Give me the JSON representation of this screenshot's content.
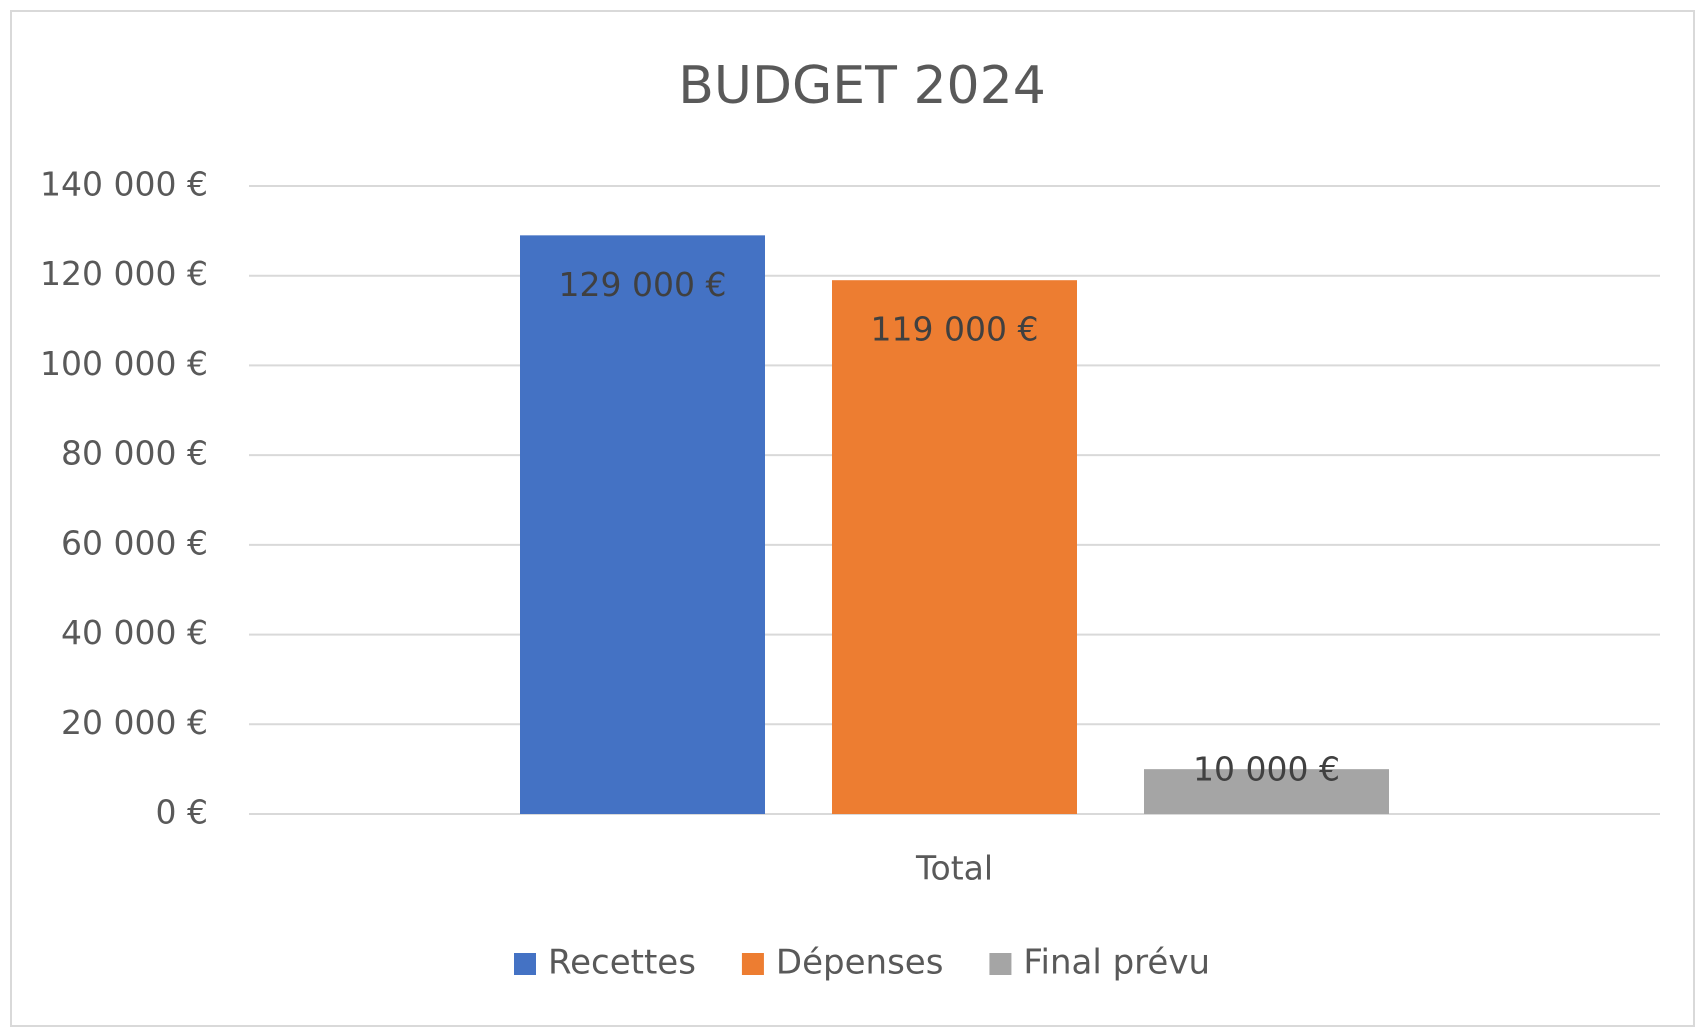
{
  "chart_data": {
    "type": "bar",
    "title": "BUDGET 2024",
    "categories": [
      "Total"
    ],
    "series": [
      {
        "name": "Recettes",
        "color": "#4472c4",
        "values": [
          129000
        ],
        "value_labels": [
          "129 000 €"
        ]
      },
      {
        "name": "Dépenses",
        "color": "#ed7d31",
        "values": [
          119000
        ],
        "value_labels": [
          "119 000 €"
        ]
      },
      {
        "name": "Final prévu",
        "color": "#a5a5a5",
        "values": [
          10000
        ],
        "value_labels": [
          "10 000 €"
        ]
      }
    ],
    "ylim": [
      0,
      140000
    ],
    "yticks": [
      {
        "value": 0,
        "label": "0 €"
      },
      {
        "value": 20000,
        "label": "20 000 €"
      },
      {
        "value": 40000,
        "label": "40 000 €"
      },
      {
        "value": 60000,
        "label": "60 000 €"
      },
      {
        "value": 80000,
        "label": "80 000 €"
      },
      {
        "value": 100000,
        "label": "100 000 €"
      },
      {
        "value": 120000,
        "label": "120 000 €"
      },
      {
        "value": 140000,
        "label": "140 000 €"
      }
    ],
    "grid": true,
    "legend": "bottom"
  }
}
